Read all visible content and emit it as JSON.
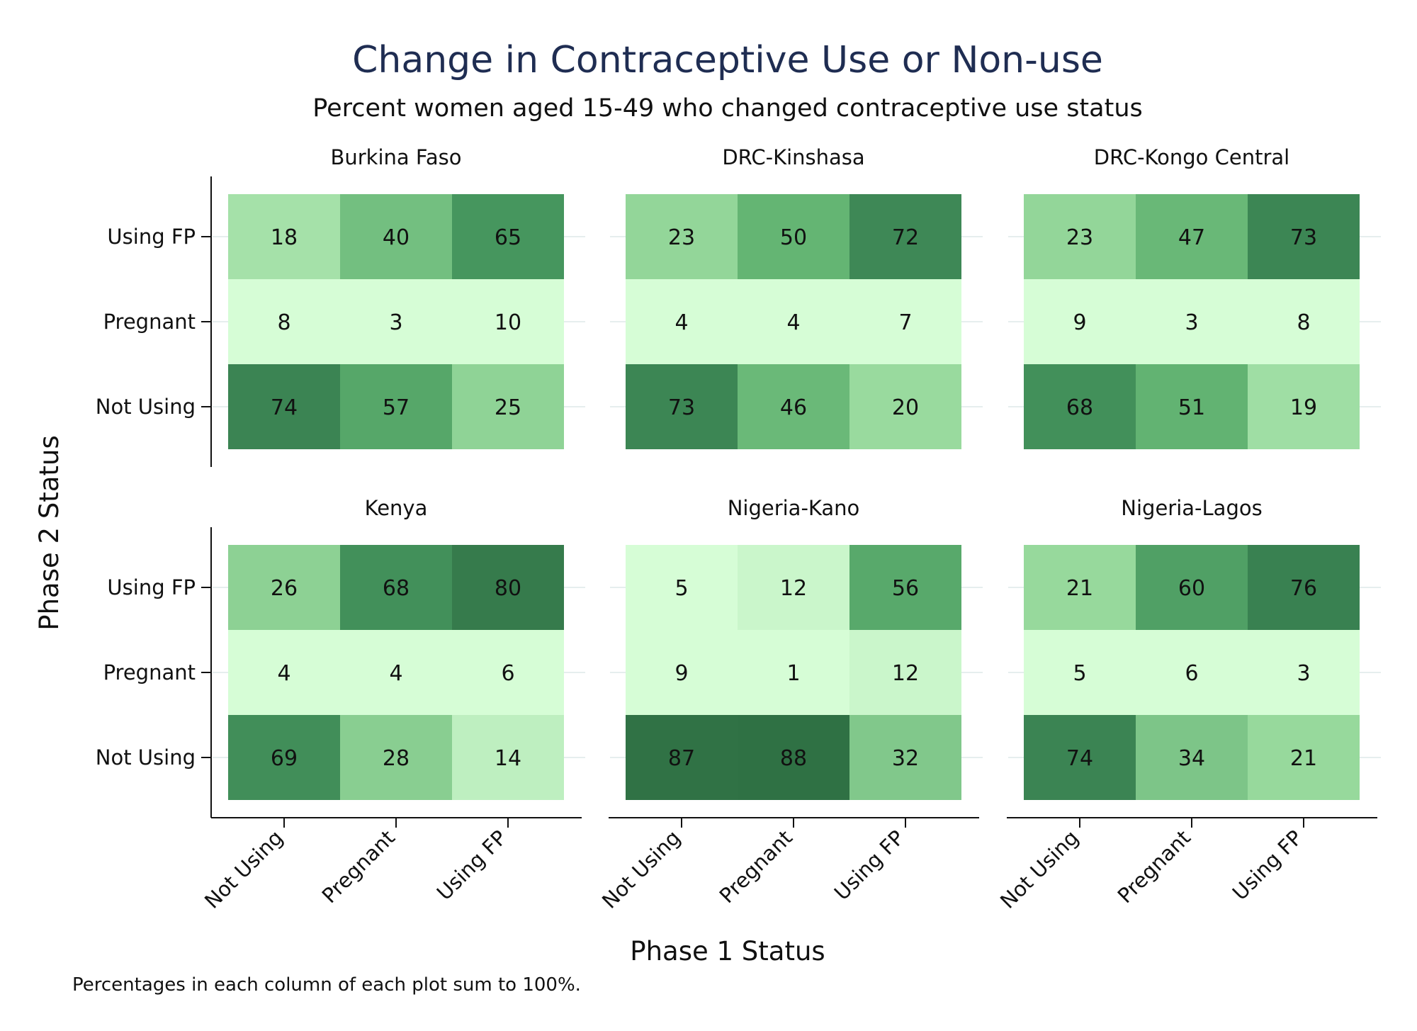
{
  "chart_data": {
    "type": "heatmap",
    "title": "Change in Contraceptive Use or Non-use",
    "subtitle": "Percent women aged 15-49 who changed contraceptive use status",
    "xlabel": "Phase 1 Status",
    "ylabel": "Phase 2 Status",
    "x_categories": [
      "Not Using",
      "Pregnant",
      "Using FP"
    ],
    "y_categories": [
      "Using FP",
      "Pregnant",
      "Not Using"
    ],
    "note": "Percentages in each column of each plot sum to 100%.",
    "grid": false,
    "color_scale": [
      "#d6fdd6",
      "#317446"
    ],
    "panels": [
      {
        "name": "Burkina Faso",
        "values": [
          [
            18,
            40,
            65
          ],
          [
            8,
            3,
            10
          ],
          [
            74,
            57,
            25
          ]
        ]
      },
      {
        "name": "DRC-Kinshasa",
        "values": [
          [
            23,
            50,
            72
          ],
          [
            4,
            4,
            7
          ],
          [
            73,
            46,
            20
          ]
        ]
      },
      {
        "name": "DRC-Kongo Central",
        "values": [
          [
            23,
            47,
            73
          ],
          [
            9,
            3,
            8
          ],
          [
            68,
            51,
            19
          ]
        ]
      },
      {
        "name": "Kenya",
        "values": [
          [
            26,
            68,
            80
          ],
          [
            4,
            4,
            6
          ],
          [
            69,
            28,
            14
          ]
        ]
      },
      {
        "name": "Nigeria-Kano",
        "values": [
          [
            5,
            12,
            56
          ],
          [
            9,
            1,
            12
          ],
          [
            87,
            88,
            32
          ]
        ]
      },
      {
        "name": "Nigeria-Lagos",
        "values": [
          [
            21,
            60,
            76
          ],
          [
            5,
            6,
            3
          ],
          [
            74,
            34,
            21
          ]
        ]
      }
    ]
  }
}
